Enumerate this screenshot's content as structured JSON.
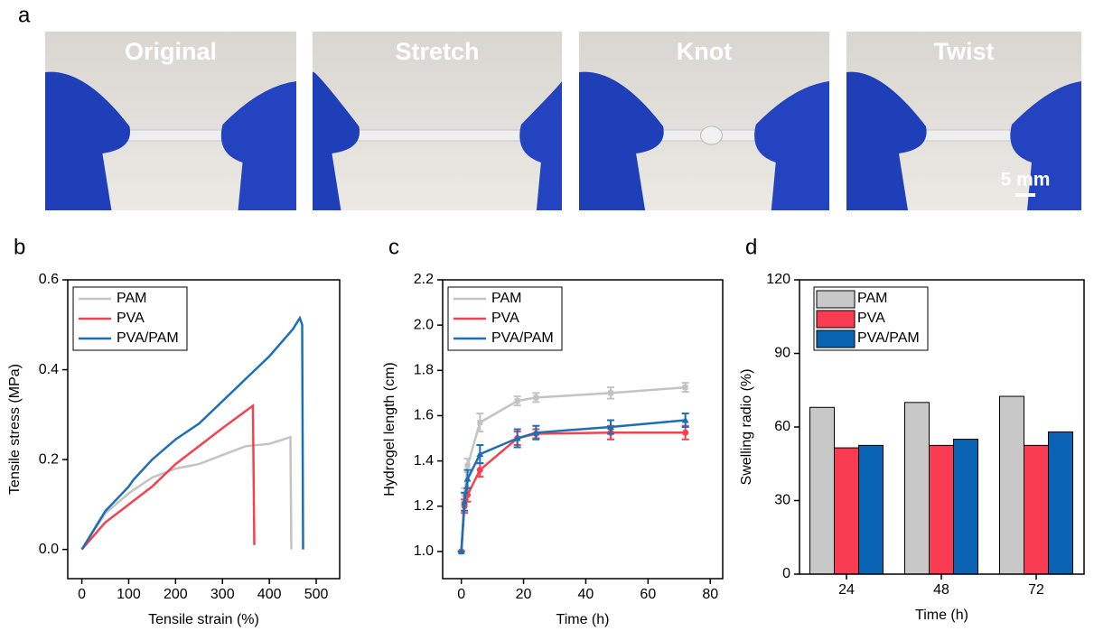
{
  "photos": {
    "panel_label": "a",
    "captions": [
      "Original",
      "Stretch",
      "Knot",
      "Twist"
    ],
    "scale_bar": "5 mm"
  },
  "chart_data": [
    {
      "type": "line",
      "panel_label": "b",
      "x_label": "Tensile strain (%)",
      "y_label": "Tensile stress (MPa)",
      "xlim": [
        -30,
        550
      ],
      "xticks": [
        0,
        100,
        200,
        300,
        400,
        500
      ],
      "ylim": [
        -0.065,
        0.6
      ],
      "yticks": [
        {
          "value": 0,
          "label": "0.0"
        },
        0.2,
        0.4,
        0.6
      ],
      "series": [
        {
          "name": "PAM",
          "color": "#c3c3c3",
          "x": [
            0,
            50,
            100,
            150,
            200,
            250,
            300,
            350,
            400,
            445,
            447
          ],
          "values": [
            0,
            0.08,
            0.125,
            0.16,
            0.18,
            0.19,
            0.21,
            0.23,
            0.235,
            0.25,
            0
          ]
        },
        {
          "name": "PVA",
          "color": "#f3424f",
          "x": [
            0,
            50,
            100,
            150,
            200,
            250,
            300,
            365,
            368
          ],
          "values": [
            0,
            0.06,
            0.1,
            0.14,
            0.19,
            0.23,
            0.27,
            0.32,
            0.01
          ]
        },
        {
          "name": "PVA/PAM",
          "color": "#1d6fb5",
          "x": [
            0,
            50,
            100,
            110,
            150,
            200,
            250,
            300,
            350,
            400,
            450,
            465,
            470,
            472
          ],
          "values": [
            0,
            0.085,
            0.14,
            0.155,
            0.2,
            0.245,
            0.28,
            0.33,
            0.38,
            0.43,
            0.49,
            0.515,
            0.5,
            0
          ]
        }
      ]
    },
    {
      "type": "line",
      "panel_label": "c",
      "x_label": "Time (h)",
      "y_label": "Hydrogel length (cm)",
      "xlim": [
        -6,
        84
      ],
      "xticks": [
        0,
        20,
        40,
        60,
        80
      ],
      "ylim": [
        0.88,
        2.2
      ],
      "yticks": [
        {
          "value": 1,
          "label": "1.0"
        },
        1.2,
        1.4,
        1.6,
        1.8,
        {
          "value": 2,
          "label": "2.0"
        },
        2.2
      ],
      "series": [
        {
          "name": "PAM",
          "color": "#c3c3c3",
          "marker": "square",
          "x": [
            0,
            1,
            2,
            6,
            18,
            24,
            48,
            72
          ],
          "values": [
            1.0,
            1.25,
            1.38,
            1.57,
            1.665,
            1.68,
            1.7,
            1.725
          ],
          "errors": [
            0,
            0.03,
            0.03,
            0.04,
            0.02,
            0.02,
            0.025,
            0.02
          ]
        },
        {
          "name": "PVA",
          "color": "#f3424f",
          "marker": "circle",
          "x": [
            0,
            1,
            2,
            6,
            18,
            24,
            48,
            72
          ],
          "values": [
            1.0,
            1.2,
            1.25,
            1.36,
            1.5,
            1.52,
            1.525,
            1.525
          ],
          "errors": [
            0,
            0.03,
            0.03,
            0.03,
            0.03,
            0.02,
            0.03,
            0.03
          ]
        },
        {
          "name": "PVA/PAM",
          "color": "#1d6fb5",
          "marker": "triangle",
          "x": [
            0,
            1,
            2,
            6,
            18,
            24,
            48,
            72
          ],
          "values": [
            1.0,
            1.22,
            1.32,
            1.43,
            1.5,
            1.525,
            1.55,
            1.58
          ],
          "errors": [
            0,
            0.04,
            0.04,
            0.04,
            0.04,
            0.03,
            0.03,
            0.03
          ]
        }
      ]
    },
    {
      "type": "bar",
      "panel_label": "d",
      "x_label": "Time (h)",
      "y_label": "Swelling radio (%)",
      "categories": [
        "24",
        "48",
        "72"
      ],
      "ylim": [
        0,
        120
      ],
      "yticks": [
        0,
        30,
        60,
        90,
        120
      ],
      "series": [
        {
          "name": "PAM",
          "color": "#c8c8c8",
          "values": [
            68,
            70,
            72.5
          ]
        },
        {
          "name": "PVA",
          "color": "#f93c52",
          "values": [
            51.5,
            52.5,
            52.5
          ]
        },
        {
          "name": "PVA/PAM",
          "color": "#0b63b4",
          "values": [
            52.5,
            55,
            58
          ]
        }
      ]
    }
  ]
}
